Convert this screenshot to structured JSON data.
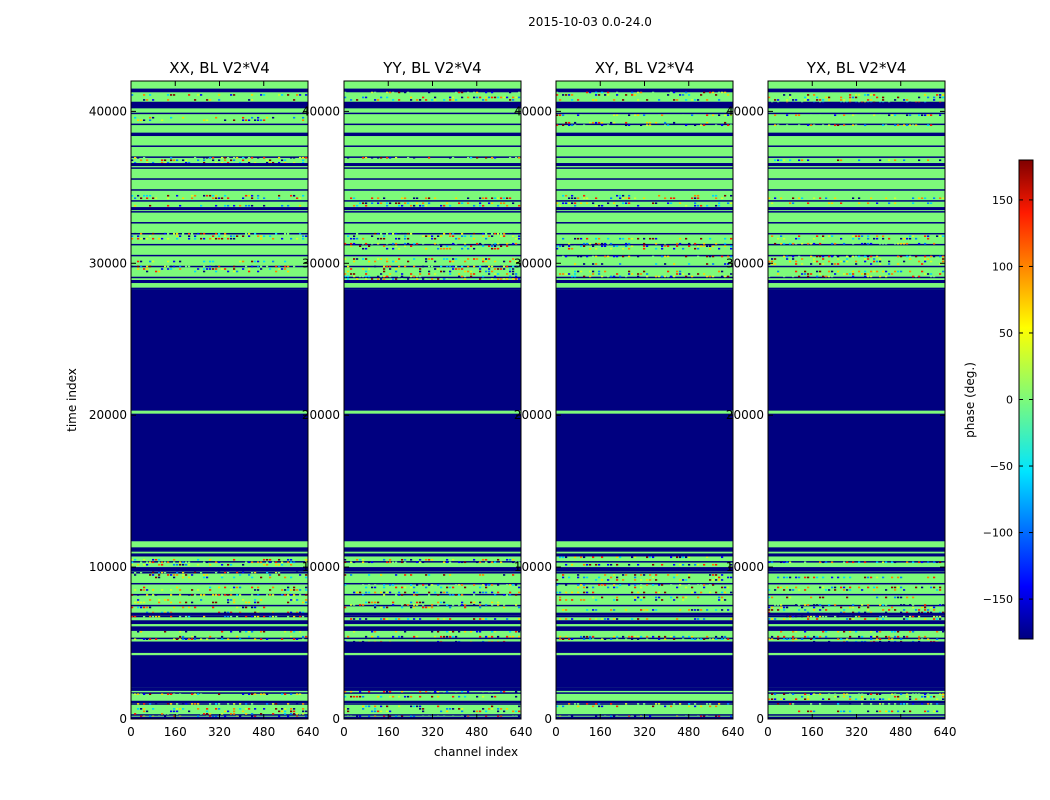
{
  "figure_title": "2015-10-03 0.0-24.0",
  "colors": {
    "dark_blue": "#000080",
    "light_green": "#7dfa7a",
    "noise": [
      "#00007f",
      "#0000ff",
      "#0080ff",
      "#00d4ff",
      "#7dfa7a",
      "#7dfa7a",
      "#7dfa7a",
      "#d4ff2a",
      "#ffd700",
      "#ff8000",
      "#ff2000",
      "#800000"
    ]
  },
  "chart_data": {
    "type": "heatmap",
    "xlabel": "channel index",
    "ylabel": "time index",
    "xlim": [
      0,
      640
    ],
    "ylim": [
      0,
      42000
    ],
    "xticks": [
      0,
      160,
      320,
      480,
      640
    ],
    "yticks": [
      0,
      10000,
      20000,
      30000,
      40000
    ],
    "panels": [
      {
        "title": "XX, BL V2*V4"
      },
      {
        "title": "YY, BL V2*V4"
      },
      {
        "title": "XY, BL V2*V4"
      },
      {
        "title": "YX, BL V2*V4"
      }
    ],
    "flagged_bands": [
      [
        0,
        150
      ],
      [
        1050,
        1200
      ],
      [
        1850,
        2100
      ],
      [
        2100,
        4200
      ],
      [
        4350,
        5100
      ],
      [
        5800,
        6100
      ],
      [
        6250,
        6500
      ],
      [
        6800,
        7000
      ],
      [
        9700,
        10000
      ],
      [
        10700,
        10900
      ],
      [
        11100,
        11300
      ],
      [
        11700,
        20100
      ],
      [
        20300,
        28300
      ],
      [
        28700,
        28900
      ],
      [
        33500,
        33700
      ],
      [
        36400,
        36600
      ],
      [
        38400,
        38600
      ],
      [
        40200,
        40600
      ],
      [
        41300,
        41500
      ]
    ],
    "noisy_bands": [
      [
        150,
        1050
      ],
      [
        1200,
        1850
      ],
      [
        5100,
        5800
      ],
      [
        6500,
        6800
      ],
      [
        7000,
        9700
      ],
      [
        10000,
        10700
      ],
      [
        28900,
        30500
      ],
      [
        31000,
        32000
      ],
      [
        33700,
        34500
      ],
      [
        36600,
        37000
      ],
      [
        39000,
        39800
      ],
      [
        40600,
        41300
      ]
    ],
    "colorbar": {
      "label": "phase (deg.)",
      "range": [
        -180,
        180
      ],
      "ticks": [
        -150,
        -100,
        -50,
        0,
        50,
        100,
        150
      ],
      "tick_labels": [
        "−150",
        "−100",
        "−50",
        "0",
        "50",
        "100",
        "150"
      ],
      "colormap": "jet"
    }
  }
}
